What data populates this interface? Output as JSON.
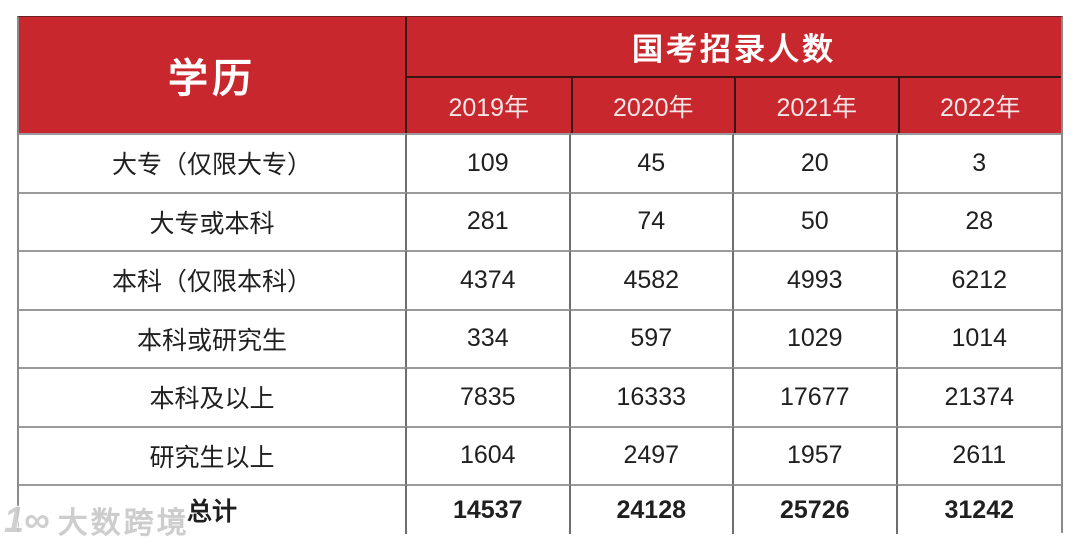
{
  "chart_data": {
    "type": "table",
    "title": "国考招录人数",
    "corner_header": "学历",
    "columns": [
      "2019年",
      "2020年",
      "2021年",
      "2022年"
    ],
    "rows": [
      {
        "label": "大专（仅限大专）",
        "values": [
          109,
          45,
          20,
          3
        ]
      },
      {
        "label": "大专或本科",
        "values": [
          281,
          74,
          50,
          28
        ]
      },
      {
        "label": "本科（仅限本科）",
        "values": [
          4374,
          4582,
          4993,
          6212
        ]
      },
      {
        "label": "本科或研究生",
        "values": [
          334,
          597,
          1029,
          1014
        ]
      },
      {
        "label": "本科及以上",
        "values": [
          7835,
          16333,
          17677,
          21374
        ]
      },
      {
        "label": "研究生以上",
        "values": [
          1604,
          2497,
          1957,
          2611
        ]
      },
      {
        "label": "总计",
        "values": [
          14537,
          24128,
          25726,
          31242
        ],
        "is_total": true
      }
    ],
    "layout": {
      "grid": "on",
      "header_rows": 2,
      "total_row": true
    }
  },
  "watermark": {
    "logo": "1∞",
    "text": "大数跨境"
  },
  "colors": {
    "header_red": "#C8272E",
    "header_text": "#FFFFFF",
    "year_text": "#F3E6E6",
    "body_text": "#1F1F1F",
    "grid_line_gray": "#8F8F8F",
    "header_line_dark": "#3B1416",
    "watermark_gray": "#C9C9C9"
  }
}
